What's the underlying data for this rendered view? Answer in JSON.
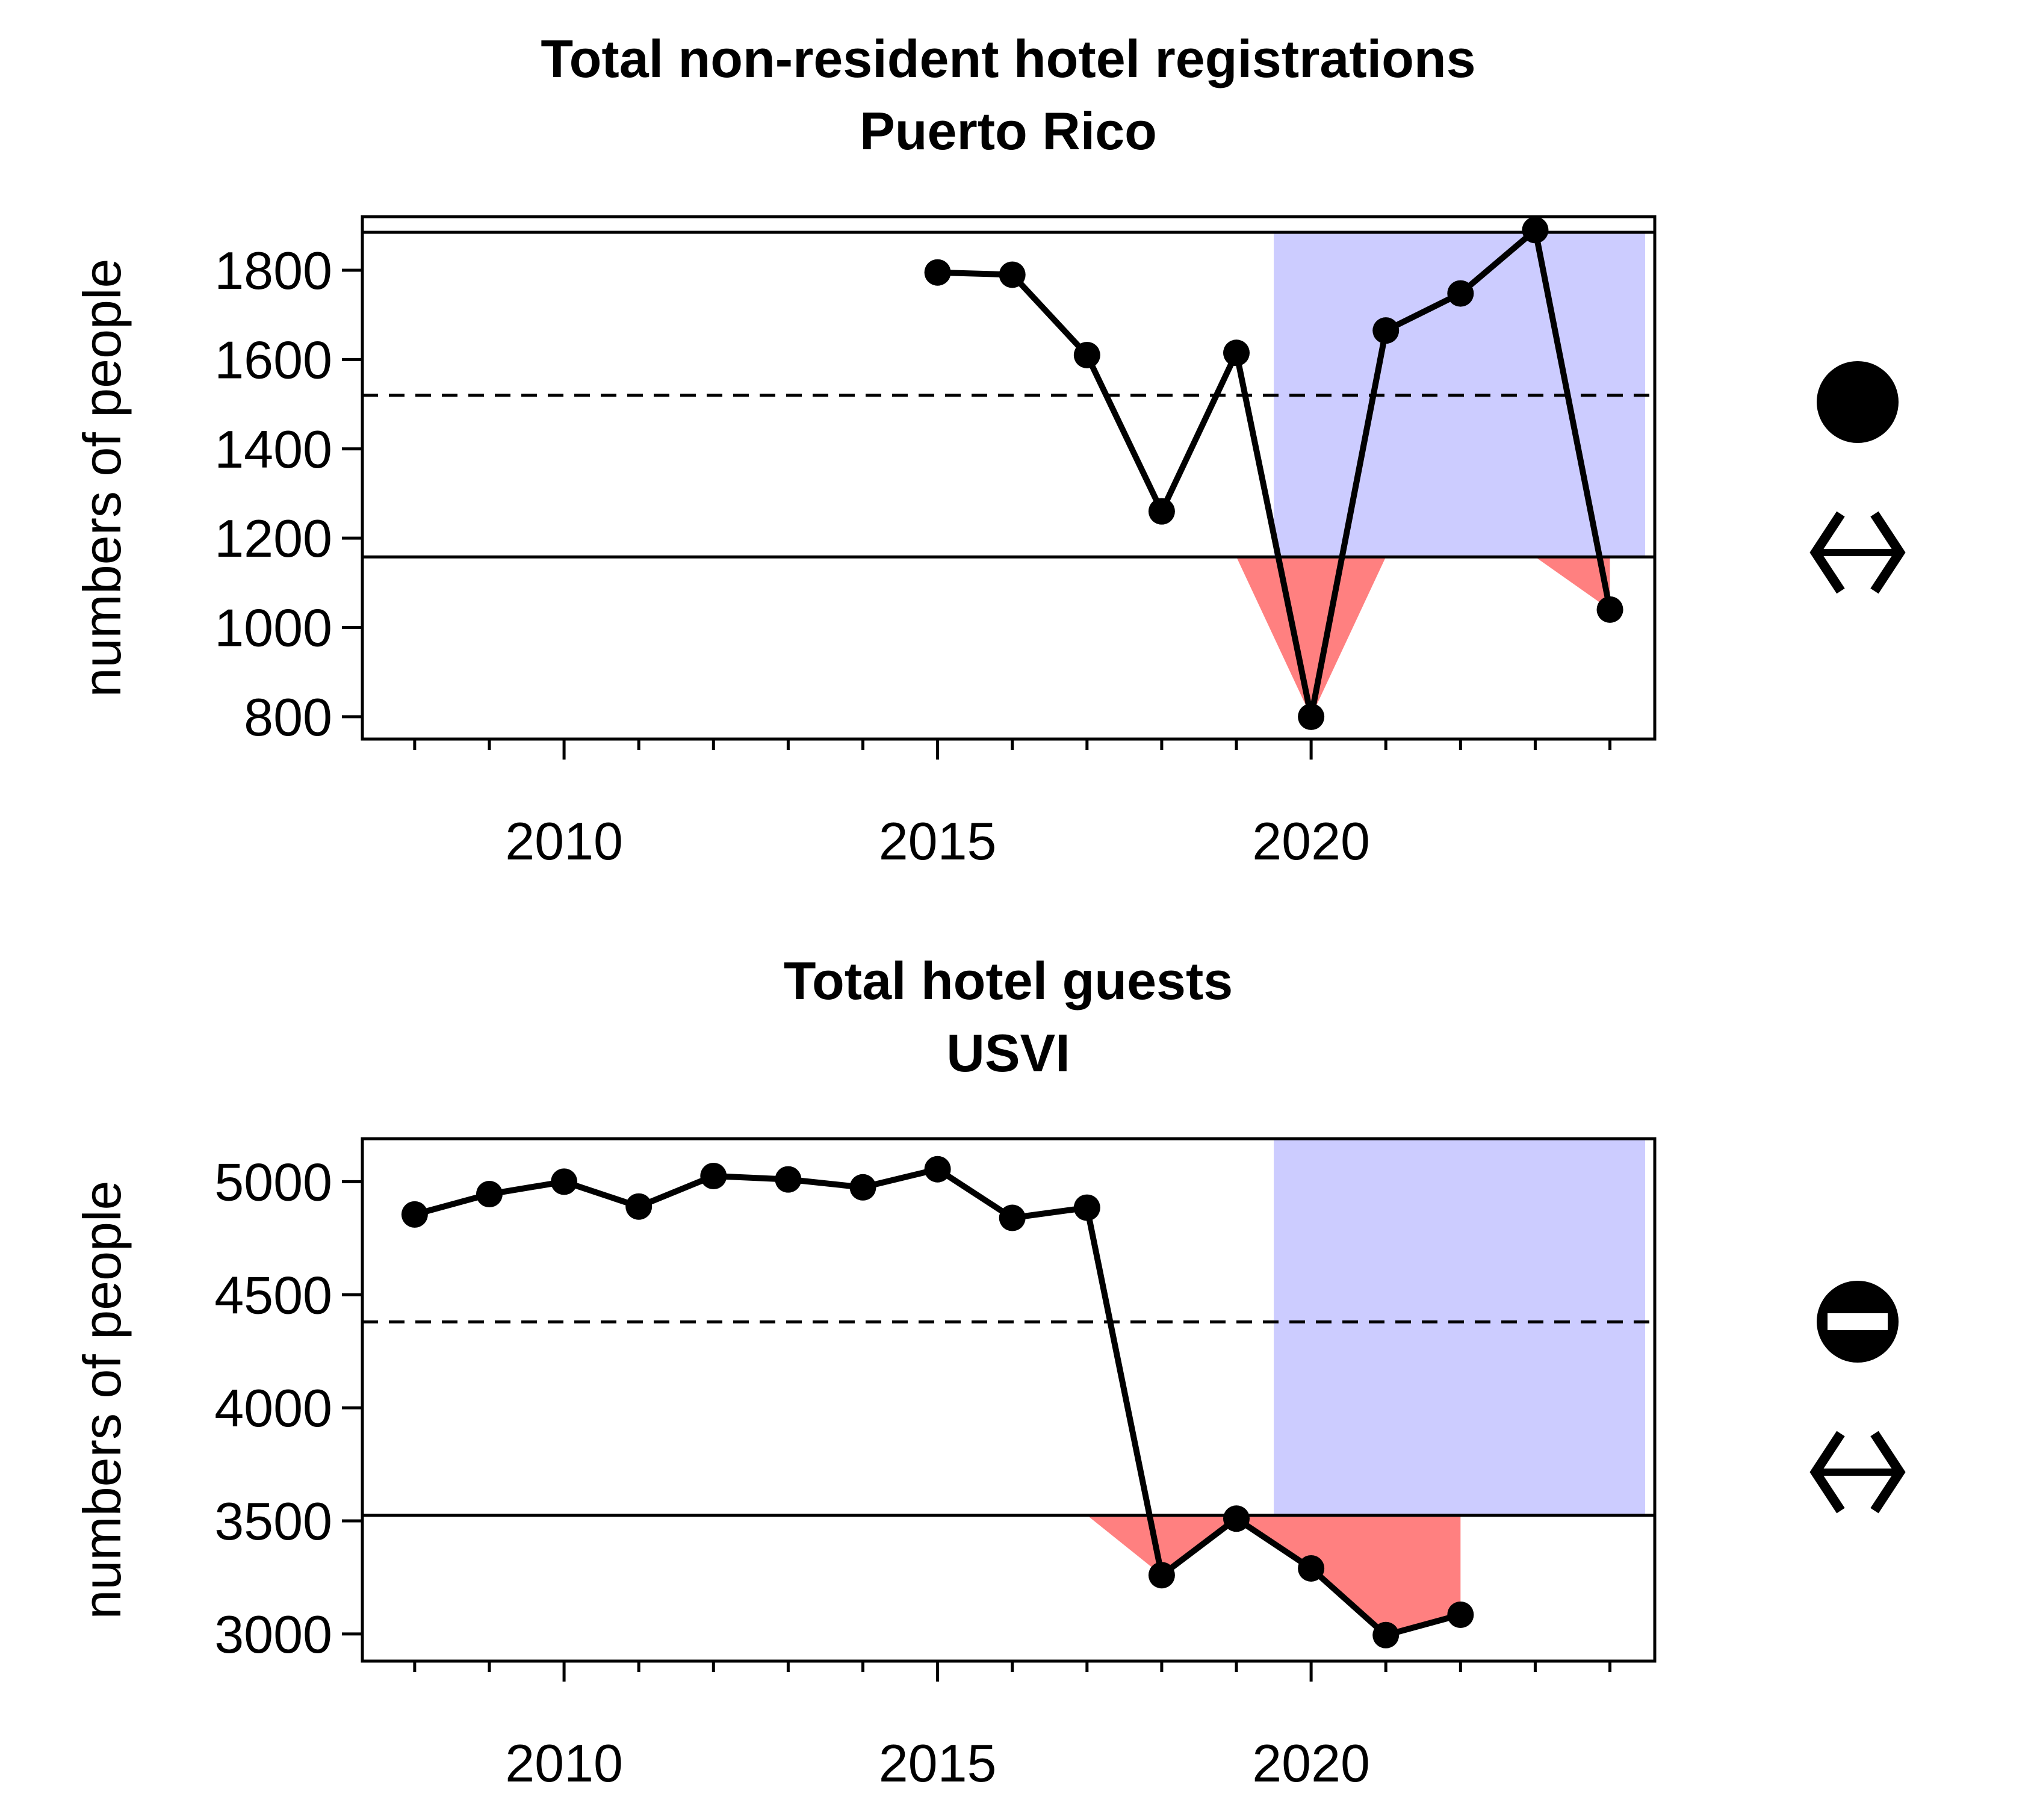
{
  "chart_data": [
    {
      "type": "line",
      "title": "Total non-resident hotel registrations",
      "subtitle": "Puerto Rico",
      "ylabel": "numbers of people",
      "xlabel": "",
      "xlim": [
        2007.3,
        2024.6
      ],
      "ylim": [
        750,
        1920
      ],
      "xticks": [
        2010,
        2015,
        2020
      ],
      "xminor": [
        2008,
        2009,
        2011,
        2012,
        2013,
        2014,
        2016,
        2017,
        2018,
        2019,
        2021,
        2022,
        2023,
        2024
      ],
      "yticks": [
        800,
        1000,
        1200,
        1400,
        1600,
        1800
      ],
      "mean": 1520,
      "upper": 1885,
      "lower": 1158,
      "highlight_start": 2019.5,
      "series": [
        {
          "x": [
            2015,
            2016,
            2017,
            2018,
            2019,
            2020,
            2021,
            2022,
            2023,
            2024
          ],
          "y": [
            1795,
            1790,
            1610,
            1260,
            1615,
            800,
            1665,
            1748,
            1890,
            1040
          ]
        }
      ],
      "trend_symbol": "filled-circle",
      "change_symbol": "horizontal-double-arrow"
    },
    {
      "type": "line",
      "title": "Total hotel guests",
      "subtitle": "USVI",
      "ylabel": "numbers of people",
      "xlabel": "",
      "xlim": [
        2007.3,
        2024.6
      ],
      "ylim": [
        2880,
        5190
      ],
      "xticks": [
        2010,
        2015,
        2020
      ],
      "xminor": [
        2008,
        2009,
        2011,
        2012,
        2013,
        2014,
        2016,
        2017,
        2018,
        2019,
        2021,
        2022,
        2023,
        2024
      ],
      "yticks": [
        3000,
        3500,
        4000,
        4500,
        5000
      ],
      "mean": 4380,
      "upper": 5190,
      "lower": 3525,
      "highlight_start": 2019.5,
      "series": [
        {
          "x": [
            2008,
            2009,
            2010,
            2011,
            2012,
            2013,
            2014,
            2015,
            2016,
            2017,
            2018,
            2019,
            2020,
            2021,
            2022
          ],
          "y": [
            4855,
            4945,
            5000,
            4890,
            5025,
            5010,
            4975,
            5055,
            4840,
            4885,
            3260,
            3510,
            3290,
            2995,
            3085
          ]
        }
      ],
      "trend_symbol": "circle-with-bar",
      "change_symbol": "horizontal-double-arrow"
    }
  ]
}
